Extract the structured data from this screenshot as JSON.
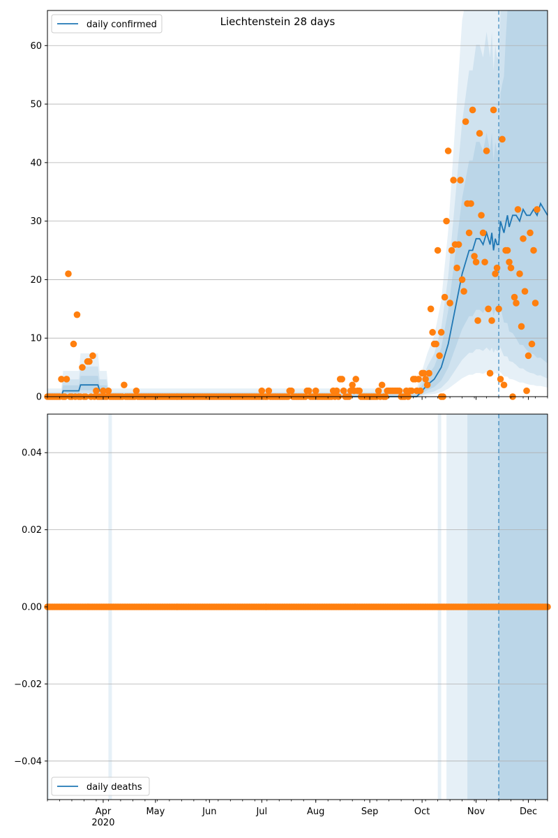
{
  "colors": {
    "model_line": "#1f77b4",
    "band": "#1f77b4",
    "observed_points": "#ff7f0e",
    "grid": "#b0b0b0",
    "forecast_line": "#1f77b4"
  },
  "chart_data": [
    {
      "type": "line",
      "title": "Liechtenstein 28 days",
      "legend": {
        "label": "daily confirmed",
        "position": "top-left"
      },
      "grid": "y",
      "xlim": [
        "2020-02-29",
        "2020-12-12"
      ],
      "ylim": [
        0,
        66
      ],
      "yticks": [
        0,
        10,
        20,
        30,
        40,
        50,
        60
      ],
      "forecast_start": "2020-11-14",
      "series": [
        {
          "name": "daily confirmed",
          "role": "model",
          "x": [
            "2020-02-29",
            "2020-03-08",
            "2020-03-09",
            "2020-03-10",
            "2020-03-18",
            "2020-03-19",
            "2020-03-29",
            "2020-03-30",
            "2020-04-03",
            "2020-04-04",
            "2020-09-28",
            "2020-10-01",
            "2020-10-04",
            "2020-10-08",
            "2020-10-10",
            "2020-10-12",
            "2020-10-14",
            "2020-10-16",
            "2020-10-18",
            "2020-10-20",
            "2020-10-22",
            "2020-10-24",
            "2020-10-26",
            "2020-10-28",
            "2020-10-30",
            "2020-11-01",
            "2020-11-03",
            "2020-11-05",
            "2020-11-07",
            "2020-11-09",
            "2020-11-10",
            "2020-11-11",
            "2020-11-12",
            "2020-11-13",
            "2020-11-14",
            "2020-11-15",
            "2020-11-17",
            "2020-11-19",
            "2020-11-20",
            "2020-11-22",
            "2020-11-24",
            "2020-11-26",
            "2020-11-28",
            "2020-11-30",
            "2020-12-02",
            "2020-12-04",
            "2020-12-06",
            "2020-12-08",
            "2020-12-10",
            "2020-12-12"
          ],
          "y": [
            0,
            0,
            1,
            1,
            1,
            2,
            2,
            1,
            1,
            0,
            0,
            1,
            2,
            3,
            4,
            5,
            7,
            9,
            12,
            15,
            18,
            21,
            23,
            25,
            25,
            27,
            27,
            26,
            28,
            26,
            28,
            25,
            27,
            26,
            26,
            30,
            28,
            31,
            29,
            31,
            31,
            30,
            32,
            31,
            31,
            32,
            31,
            33,
            32,
            31
          ]
        },
        {
          "name": "",
          "role": "observed",
          "points": [
            [
              "2020-03-08",
              3
            ],
            [
              "2020-03-11",
              3
            ],
            [
              "2020-03-12",
              21
            ],
            [
              "2020-03-15",
              9
            ],
            [
              "2020-03-17",
              14
            ],
            [
              "2020-03-20",
              5
            ],
            [
              "2020-03-23",
              6
            ],
            [
              "2020-03-24",
              6
            ],
            [
              "2020-03-26",
              7
            ],
            [
              "2020-03-28",
              1
            ],
            [
              "2020-04-01",
              1
            ],
            [
              "2020-04-04",
              1
            ],
            [
              "2020-04-13",
              2
            ],
            [
              "2020-04-20",
              1
            ],
            [
              "2020-07-01",
              1
            ],
            [
              "2020-07-05",
              1
            ],
            [
              "2020-07-17",
              1
            ],
            [
              "2020-07-18",
              1
            ],
            [
              "2020-07-27",
              1
            ],
            [
              "2020-07-28",
              1
            ],
            [
              "2020-08-01",
              1
            ],
            [
              "2020-08-11",
              1
            ],
            [
              "2020-08-13",
              1
            ],
            [
              "2020-08-15",
              3
            ],
            [
              "2020-08-16",
              3
            ],
            [
              "2020-08-17",
              1
            ],
            [
              "2020-08-21",
              1
            ],
            [
              "2020-08-22",
              2
            ],
            [
              "2020-08-23",
              1
            ],
            [
              "2020-08-24",
              3
            ],
            [
              "2020-08-25",
              1
            ],
            [
              "2020-08-26",
              1
            ],
            [
              "2020-09-06",
              1
            ],
            [
              "2020-09-08",
              2
            ],
            [
              "2020-09-11",
              1
            ],
            [
              "2020-09-12",
              1
            ],
            [
              "2020-09-13",
              1
            ],
            [
              "2020-09-14",
              1
            ],
            [
              "2020-09-15",
              1
            ],
            [
              "2020-09-16",
              1
            ],
            [
              "2020-09-17",
              1
            ],
            [
              "2020-09-18",
              1
            ],
            [
              "2020-09-22",
              1
            ],
            [
              "2020-09-24",
              1
            ],
            [
              "2020-09-25",
              1
            ],
            [
              "2020-09-26",
              3
            ],
            [
              "2020-09-27",
              3
            ],
            [
              "2020-09-28",
              1
            ],
            [
              "2020-09-29",
              3
            ],
            [
              "2020-09-30",
              1
            ],
            [
              "2020-10-01",
              4
            ],
            [
              "2020-10-02",
              4
            ],
            [
              "2020-10-03",
              3
            ],
            [
              "2020-10-04",
              2
            ],
            [
              "2020-10-05",
              4
            ],
            [
              "2020-10-06",
              15
            ],
            [
              "2020-10-07",
              11
            ],
            [
              "2020-10-08",
              9
            ],
            [
              "2020-10-09",
              9
            ],
            [
              "2020-10-10",
              25
            ],
            [
              "2020-10-11",
              7
            ],
            [
              "2020-10-12",
              0
            ],
            [
              "2020-10-12",
              11
            ],
            [
              "2020-10-14",
              17
            ],
            [
              "2020-10-15",
              30
            ],
            [
              "2020-10-16",
              42
            ],
            [
              "2020-10-17",
              16
            ],
            [
              "2020-10-18",
              25
            ],
            [
              "2020-10-19",
              37
            ],
            [
              "2020-10-20",
              26
            ],
            [
              "2020-10-21",
              22
            ],
            [
              "2020-10-22",
              26
            ],
            [
              "2020-10-23",
              37
            ],
            [
              "2020-10-24",
              20
            ],
            [
              "2020-10-25",
              18
            ],
            [
              "2020-10-26",
              47
            ],
            [
              "2020-10-27",
              33
            ],
            [
              "2020-10-28",
              28
            ],
            [
              "2020-10-29",
              33
            ],
            [
              "2020-10-30",
              49
            ],
            [
              "2020-10-31",
              24
            ],
            [
              "2020-11-01",
              23
            ],
            [
              "2020-11-02",
              13
            ],
            [
              "2020-11-03",
              45
            ],
            [
              "2020-11-04",
              31
            ],
            [
              "2020-11-05",
              28
            ],
            [
              "2020-11-06",
              23
            ],
            [
              "2020-11-07",
              42
            ],
            [
              "2020-11-08",
              15
            ],
            [
              "2020-11-09",
              4
            ],
            [
              "2020-11-10",
              13
            ],
            [
              "2020-11-11",
              49
            ],
            [
              "2020-11-12",
              21
            ],
            [
              "2020-11-13",
              22
            ],
            [
              "2020-11-14",
              15
            ],
            [
              "2020-11-15",
              3
            ],
            [
              "2020-11-16",
              44
            ],
            [
              "2020-11-17",
              2
            ],
            [
              "2020-11-18",
              25
            ],
            [
              "2020-11-19",
              25
            ],
            [
              "2020-11-20",
              23
            ],
            [
              "2020-11-21",
              22
            ],
            [
              "2020-11-22",
              0
            ],
            [
              "2020-11-23",
              17
            ],
            [
              "2020-11-24",
              16
            ],
            [
              "2020-11-25",
              32
            ],
            [
              "2020-11-26",
              21
            ],
            [
              "2020-11-27",
              12
            ],
            [
              "2020-11-28",
              27
            ],
            [
              "2020-11-29",
              18
            ],
            [
              "2020-11-30",
              1
            ],
            [
              "2020-12-01",
              7
            ],
            [
              "2020-12-02",
              28
            ],
            [
              "2020-12-03",
              9
            ],
            [
              "2020-12-04",
              25
            ],
            [
              "2020-12-05",
              16
            ],
            [
              "2020-12-06",
              32
            ]
          ]
        }
      ]
    },
    {
      "type": "line",
      "title": "",
      "legend": {
        "label": "daily deaths",
        "position": "bottom-left"
      },
      "grid": "y",
      "xlim": [
        "2020-02-29",
        "2020-12-12"
      ],
      "ylim": [
        -0.05,
        0.05
      ],
      "yticks": [
        -0.04,
        -0.02,
        0.0,
        0.02,
        0.04
      ],
      "ytick_labels": [
        "−0.04",
        "−0.02",
        "0.00",
        "0.02",
        "0.04"
      ],
      "forecast_start": "2020-11-14",
      "series": [
        {
          "name": "daily deaths",
          "role": "model",
          "x": [
            "2020-02-29",
            "2020-12-12"
          ],
          "y": [
            0,
            0
          ]
        },
        {
          "name": "",
          "role": "observed",
          "all_zero": true,
          "x_start": "2020-02-29",
          "x_end": "2020-12-12"
        }
      ]
    }
  ],
  "x_axis": {
    "month_ticks": [
      [
        "2020-04-01",
        "Apr"
      ],
      [
        "2020-05-01",
        "May"
      ],
      [
        "2020-06-01",
        "Jun"
      ],
      [
        "2020-07-01",
        "Jul"
      ],
      [
        "2020-08-01",
        "Aug"
      ],
      [
        "2020-09-01",
        "Sep"
      ],
      [
        "2020-10-01",
        "Oct"
      ],
      [
        "2020-11-01",
        "Nov"
      ],
      [
        "2020-12-01",
        "Dec"
      ]
    ],
    "year_label": "2020"
  }
}
